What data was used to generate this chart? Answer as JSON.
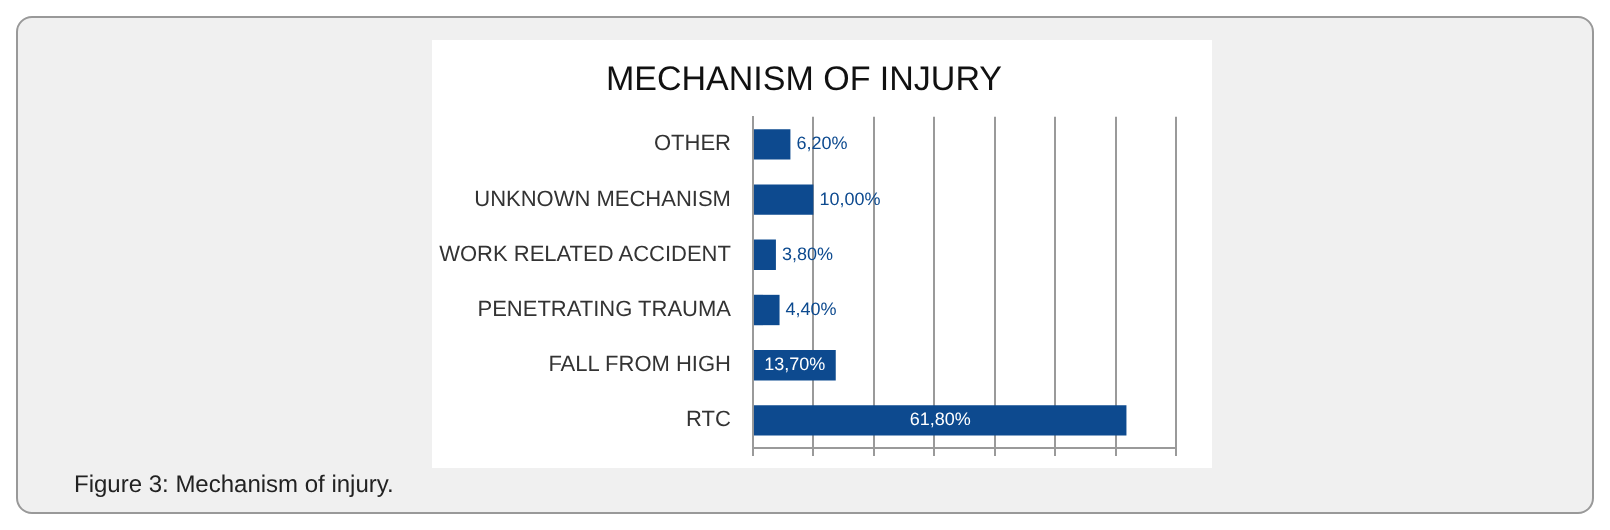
{
  "chart_data": {
    "type": "bar",
    "orientation": "horizontal",
    "title": "MECHANISM OF INJURY",
    "categories": [
      "OTHER",
      "UNKNOWN MECHANISM",
      "WORK RELATED ACCIDENT",
      "PENETRATING TRAUMA",
      "FALL FROM HIGH",
      "RTC"
    ],
    "values": [
      6.2,
      10.0,
      3.8,
      4.4,
      13.7,
      61.8
    ],
    "value_labels": [
      "6,20%",
      "10,00%",
      "3,80%",
      "4,40%",
      "13,70%",
      "61,80%"
    ],
    "color": "#0d4a8f",
    "xlim": [
      0,
      70
    ],
    "xticks": [
      {
        "value": 0,
        "label": null
      },
      {
        "value": 10,
        "label": null
      },
      {
        "value": 20,
        "label": null
      },
      {
        "value": 30,
        "label": null
      },
      {
        "value": 40,
        "label": null
      },
      {
        "value": 50,
        "label": null
      },
      {
        "value": 60,
        "label": null
      },
      {
        "value": 70,
        "label": null
      }
    ],
    "grid": "x",
    "legend": false,
    "tick_labels": "y",
    "annotations": [
      "Figure 3: Mechanism of injury."
    ]
  }
}
